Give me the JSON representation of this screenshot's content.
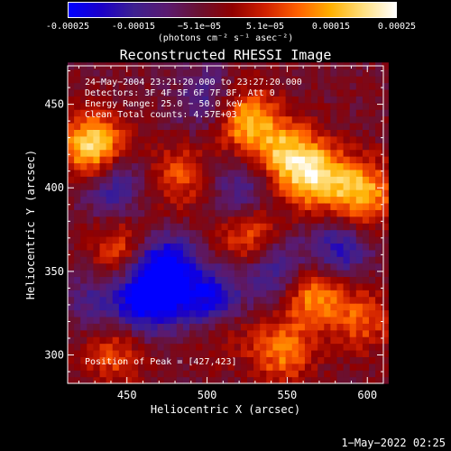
{
  "colorbar": {
    "ticks": [
      "-0.00025",
      "-0.00015",
      "−5.1e−05",
      "5.1e−05",
      "0.00015",
      "0.00025"
    ],
    "units": "(photons cm⁻² s⁻¹ asec⁻²)",
    "colors": [
      "#0000ff",
      "#1b00c8",
      "#3d2090",
      "#5a1a70",
      "#6a1030",
      "#900000",
      "#d02000",
      "#ff6000",
      "#ffb000",
      "#ffe080",
      "#ffffff"
    ]
  },
  "chart_data": {
    "type": "heatmap",
    "title": "Reconstructed RHESSI Image",
    "xlabel": "Heliocentric X (arcsec)",
    "ylabel": "Heliocentric Y (arcsec)",
    "xlim": [
      413,
      610
    ],
    "ylim": [
      283,
      473
    ],
    "xticks": [
      450,
      500,
      550,
      600
    ],
    "yticks": [
      300,
      350,
      400,
      450
    ],
    "zlim": [
      -0.00025,
      0.00025
    ],
    "peak": [
      427,
      423
    ],
    "hot_spots": [
      {
        "x": 427,
        "y": 423,
        "v": 0.00025
      },
      {
        "x": 520,
        "y": 440,
        "v": 0.0002
      },
      {
        "x": 545,
        "y": 420,
        "v": 0.00018
      },
      {
        "x": 565,
        "y": 405,
        "v": 0.00022
      },
      {
        "x": 595,
        "y": 395,
        "v": 0.0002
      },
      {
        "x": 480,
        "y": 405,
        "v": 0.00012
      },
      {
        "x": 445,
        "y": 360,
        "v": 0.00014
      },
      {
        "x": 525,
        "y": 370,
        "v": 0.00016
      },
      {
        "x": 565,
        "y": 335,
        "v": 0.00018
      },
      {
        "x": 595,
        "y": 320,
        "v": 0.00012
      },
      {
        "x": 545,
        "y": 300,
        "v": 0.00015
      },
      {
        "x": 505,
        "y": 315,
        "v": 0.0001
      },
      {
        "x": 440,
        "y": 300,
        "v": 0.00012
      }
    ],
    "cold_spots": [
      {
        "x": 470,
        "y": 350,
        "v": -0.00025
      },
      {
        "x": 500,
        "y": 330,
        "v": -0.00022
      },
      {
        "x": 460,
        "y": 330,
        "v": -0.0002
      },
      {
        "x": 540,
        "y": 350,
        "v": -0.00015
      },
      {
        "x": 580,
        "y": 360,
        "v": -0.00015
      },
      {
        "x": 500,
        "y": 450,
        "v": -0.00012
      },
      {
        "x": 440,
        "y": 400,
        "v": -0.00014
      },
      {
        "x": 520,
        "y": 395,
        "v": -0.00012
      },
      {
        "x": 430,
        "y": 330,
        "v": -0.0001
      }
    ]
  },
  "info": {
    "time_range": "24−May−2004 23:21:20.000 to 23:27:20.000",
    "detectors": "Detectors: 3F 4F 5F 6F 7F 8F, Att 0",
    "energy": "Energy Range: 25.0 − 50.0 keV",
    "clean": "Clean    Total counts: 4.57E+03",
    "peak_label": "Position of Peak = [427,423]"
  },
  "footer": {
    "date": "1−May−2022 02:25"
  }
}
